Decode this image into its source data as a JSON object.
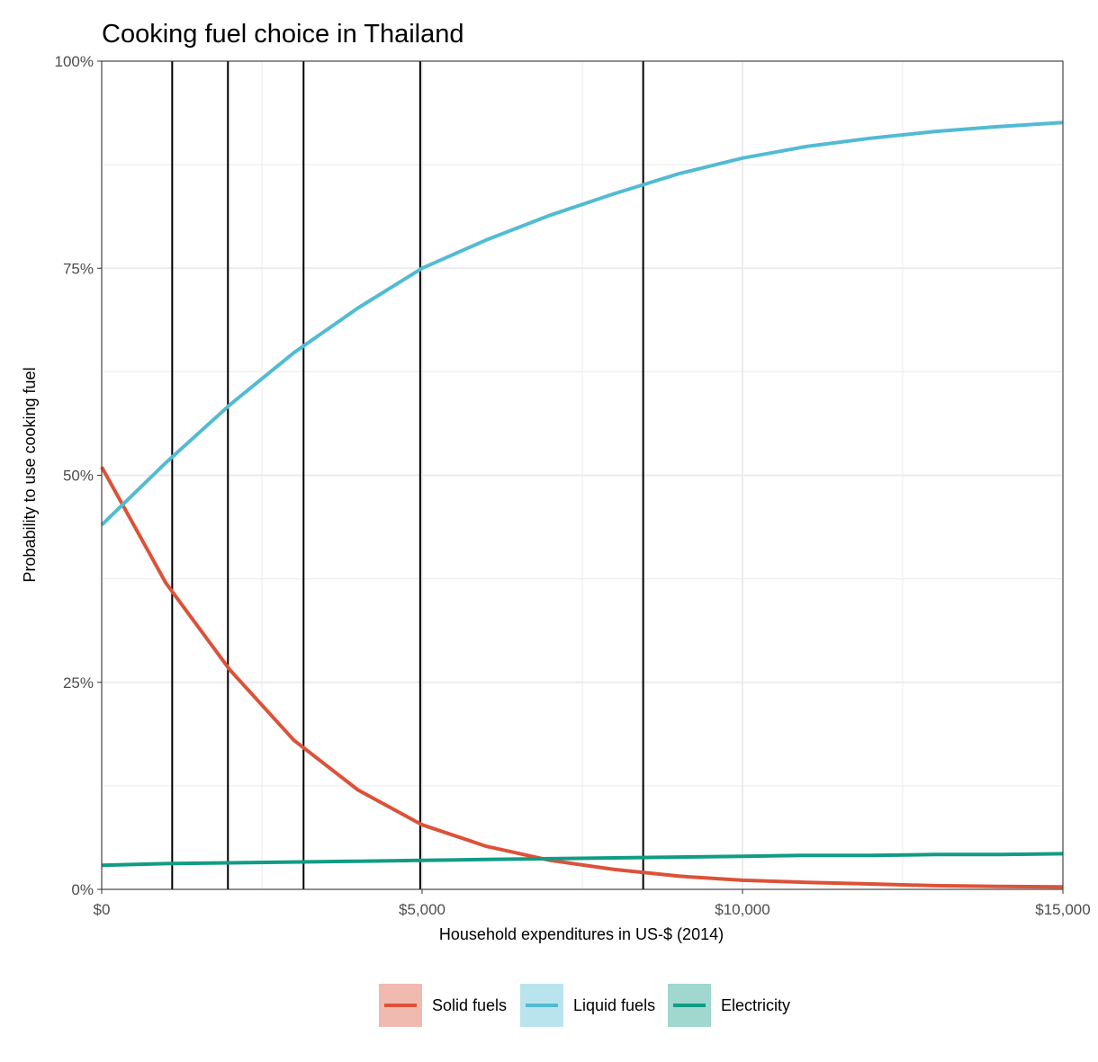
{
  "chart_data": {
    "type": "line",
    "title": "Cooking fuel choice in Thailand",
    "xlabel": "Household expenditures in US-$ (2014)",
    "ylabel": "Probability to use cooking fuel",
    "xlim": [
      0,
      15000
    ],
    "ylim": [
      0,
      1
    ],
    "x_ticks": [
      {
        "value": 0,
        "label": "$0"
      },
      {
        "value": 5000,
        "label": "$5,000"
      },
      {
        "value": 10000,
        "label": "$10,000"
      },
      {
        "value": 15000,
        "label": "$15,000"
      }
    ],
    "y_ticks": [
      {
        "value": 0,
        "label": "0%"
      },
      {
        "value": 0.25,
        "label": "25%"
      },
      {
        "value": 0.5,
        "label": "50%"
      },
      {
        "value": 0.75,
        "label": "75%"
      },
      {
        "value": 1,
        "label": "100%"
      }
    ],
    "grid": true,
    "vertical_reference_lines": [
      1100,
      1970,
      3150,
      4970,
      8450
    ],
    "legend_position": "bottom",
    "series": [
      {
        "name": "Solid fuels",
        "color": "#DC5239",
        "x": [
          0,
          1000,
          2000,
          3000,
          4000,
          5000,
          6000,
          7000,
          8000,
          9000,
          10000,
          11000,
          12000,
          13000,
          14000,
          15000
        ],
        "y": [
          0.51,
          0.37,
          0.265,
          0.18,
          0.12,
          0.078,
          0.052,
          0.035,
          0.024,
          0.016,
          0.011,
          0.0085,
          0.0065,
          0.0045,
          0.0035,
          0.003
        ]
      },
      {
        "name": "Liquid fuels",
        "color": "#52BBD3",
        "x": [
          0,
          1000,
          2000,
          3000,
          4000,
          5000,
          6000,
          7000,
          8000,
          9000,
          10000,
          11000,
          12000,
          13000,
          14000,
          15000
        ],
        "y": [
          0.44,
          0.515,
          0.585,
          0.648,
          0.702,
          0.75,
          0.784,
          0.814,
          0.84,
          0.864,
          0.883,
          0.897,
          0.907,
          0.915,
          0.921,
          0.926
        ]
      },
      {
        "name": "Electricity",
        "color": "#119C84",
        "x": [
          0,
          1000,
          2000,
          3000,
          4000,
          5000,
          6000,
          7000,
          8000,
          9000,
          10000,
          11000,
          12000,
          13000,
          14000,
          15000
        ],
        "y": [
          0.029,
          0.031,
          0.032,
          0.033,
          0.034,
          0.035,
          0.036,
          0.037,
          0.038,
          0.039,
          0.04,
          0.041,
          0.041,
          0.042,
          0.042,
          0.043
        ]
      }
    ]
  }
}
